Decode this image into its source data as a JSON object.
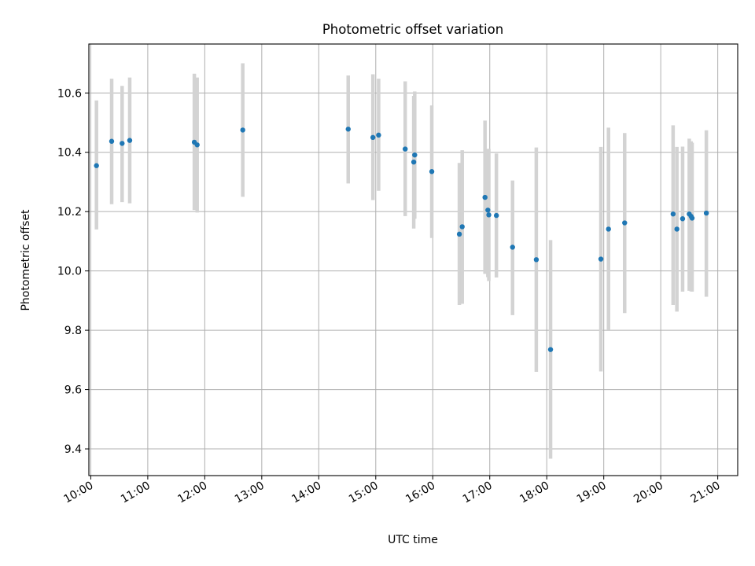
{
  "chart_data": {
    "type": "scatter",
    "title": "Photometric offset variation",
    "xlabel": "UTC time",
    "ylabel": "Photometric offset",
    "x_is_time": true,
    "xlim": [
      "09:58",
      "21:21"
    ],
    "ylim": [
      9.31,
      10.765
    ],
    "x_ticks": [
      "10:00",
      "11:00",
      "12:00",
      "13:00",
      "14:00",
      "15:00",
      "16:00",
      "17:00",
      "18:00",
      "19:00",
      "20:00",
      "21:00"
    ],
    "y_ticks": [
      "9.4",
      "9.6",
      "9.8",
      "10.0",
      "10.2",
      "10.4",
      "10.6"
    ],
    "grid": true,
    "colors": {
      "point": "#1f77b4",
      "errorbar": "#d3d3d3"
    },
    "points": [
      {
        "time": "10:06",
        "y": 10.355,
        "lo": 10.14,
        "hi": 10.575
      },
      {
        "time": "10:22",
        "y": 10.437,
        "lo": 10.225,
        "hi": 10.648
      },
      {
        "time": "10:33",
        "y": 10.43,
        "lo": 10.232,
        "hi": 10.624
      },
      {
        "time": "10:41",
        "y": 10.44,
        "lo": 10.228,
        "hi": 10.652
      },
      {
        "time": "11:49",
        "y": 10.434,
        "lo": 10.205,
        "hi": 10.665
      },
      {
        "time": "11:52",
        "y": 10.425,
        "lo": 10.197,
        "hi": 10.652
      },
      {
        "time": "12:40",
        "y": 10.475,
        "lo": 10.25,
        "hi": 10.7
      },
      {
        "time": "14:31",
        "y": 10.478,
        "lo": 10.295,
        "hi": 10.659
      },
      {
        "time": "14:57",
        "y": 10.45,
        "lo": 10.239,
        "hi": 10.663
      },
      {
        "time": "15:03",
        "y": 10.458,
        "lo": 10.27,
        "hi": 10.648
      },
      {
        "time": "15:31",
        "y": 10.411,
        "lo": 10.185,
        "hi": 10.639
      },
      {
        "time": "15:40",
        "y": 10.367,
        "lo": 10.143,
        "hi": 10.59
      },
      {
        "time": "15:41",
        "y": 10.391,
        "lo": 10.176,
        "hi": 10.605
      },
      {
        "time": "15:59",
        "y": 10.335,
        "lo": 10.111,
        "hi": 10.558
      },
      {
        "time": "16:28",
        "y": 10.124,
        "lo": 9.885,
        "hi": 10.364
      },
      {
        "time": "16:31",
        "y": 10.149,
        "lo": 9.889,
        "hi": 10.407
      },
      {
        "time": "16:55",
        "y": 10.248,
        "lo": 9.99,
        "hi": 10.507
      },
      {
        "time": "16:58",
        "y": 10.205,
        "lo": 9.979,
        "hi": 10.411
      },
      {
        "time": "16:59",
        "y": 10.189,
        "lo": 9.966,
        "hi": 10.412
      },
      {
        "time": "17:07",
        "y": 10.187,
        "lo": 9.978,
        "hi": 10.396
      },
      {
        "time": "17:24",
        "y": 10.08,
        "lo": 9.851,
        "hi": 10.305
      },
      {
        "time": "17:49",
        "y": 10.038,
        "lo": 9.66,
        "hi": 10.416
      },
      {
        "time": "18:04",
        "y": 9.735,
        "lo": 9.367,
        "hi": 10.104
      },
      {
        "time": "18:57",
        "y": 10.04,
        "lo": 9.661,
        "hi": 10.418
      },
      {
        "time": "19:05",
        "y": 10.141,
        "lo": 9.801,
        "hi": 10.483
      },
      {
        "time": "19:22",
        "y": 10.162,
        "lo": 9.858,
        "hi": 10.465
      },
      {
        "time": "20:13",
        "y": 10.192,
        "lo": 9.885,
        "hi": 10.491
      },
      {
        "time": "20:17",
        "y": 10.141,
        "lo": 9.863,
        "hi": 10.418
      },
      {
        "time": "20:23",
        "y": 10.176,
        "lo": 9.93,
        "hi": 10.419
      },
      {
        "time": "20:30",
        "y": 10.192,
        "lo": 9.933,
        "hi": 10.446
      },
      {
        "time": "20:32",
        "y": 10.184,
        "lo": 9.931,
        "hi": 10.437
      },
      {
        "time": "20:33",
        "y": 10.178,
        "lo": 9.93,
        "hi": 10.432
      },
      {
        "time": "20:48",
        "y": 10.195,
        "lo": 9.913,
        "hi": 10.474
      }
    ]
  }
}
